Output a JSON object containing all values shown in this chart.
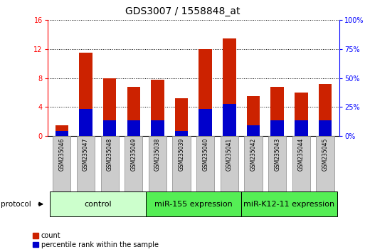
{
  "title": "GDS3007 / 1558848_at",
  "samples": [
    "GSM235046",
    "GSM235047",
    "GSM235048",
    "GSM235049",
    "GSM235038",
    "GSM235039",
    "GSM235040",
    "GSM235041",
    "GSM235042",
    "GSM235043",
    "GSM235044",
    "GSM235045"
  ],
  "count_values": [
    1.5,
    11.5,
    8.0,
    6.8,
    7.8,
    5.2,
    12.0,
    13.5,
    5.5,
    6.8,
    6.0,
    7.2
  ],
  "percentile_values": [
    4.5,
    23.5,
    13.5,
    13.5,
    13.5,
    4.5,
    23.5,
    28.0,
    9.5,
    13.5,
    13.5,
    13.5
  ],
  "groups": [
    {
      "label": "control",
      "start": 0,
      "end": 4,
      "color": "#ccffcc"
    },
    {
      "label": "miR-155 expression",
      "start": 4,
      "end": 8,
      "color": "#55ee55"
    },
    {
      "label": "miR-K12-11 expression",
      "start": 8,
      "end": 12,
      "color": "#55ee55"
    }
  ],
  "left_ylim": [
    0,
    16
  ],
  "right_ylim": [
    0,
    100
  ],
  "left_yticks": [
    0,
    4,
    8,
    12,
    16
  ],
  "right_yticks": [
    0,
    25,
    50,
    75,
    100
  ],
  "bar_color_red": "#cc2200",
  "bar_color_blue": "#0000cc",
  "bar_width": 0.55,
  "background_color": "#ffffff",
  "title_fontsize": 10,
  "tick_fontsize": 7,
  "legend_fontsize": 7,
  "group_label_fontsize": 8
}
